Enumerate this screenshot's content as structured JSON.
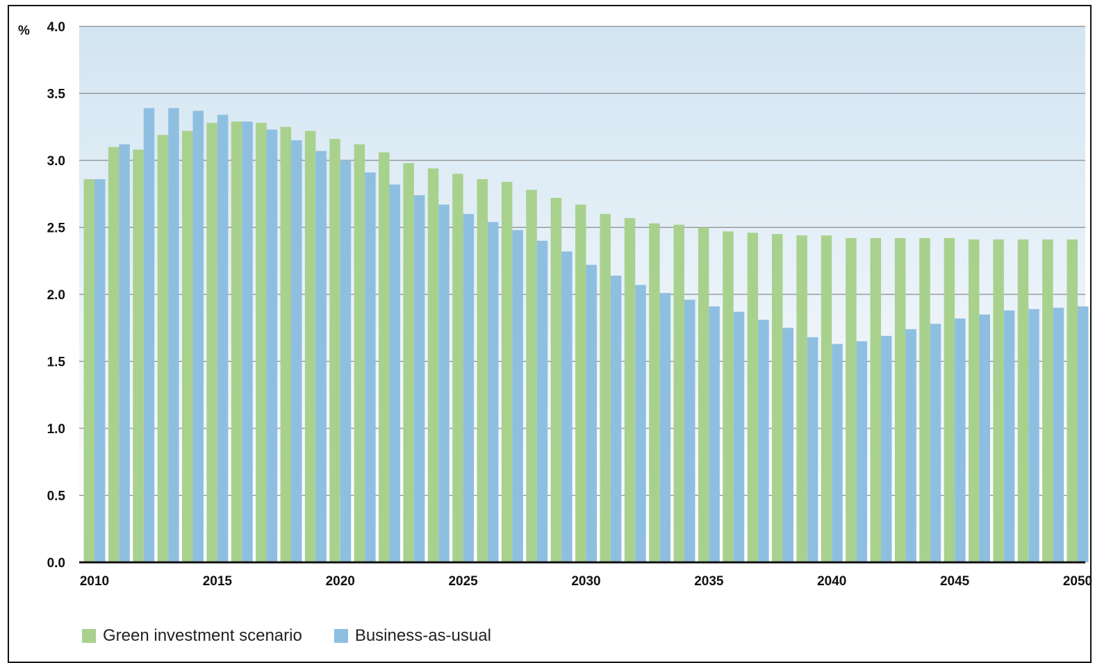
{
  "chart_data": {
    "type": "bar",
    "ylabel": "%",
    "ylim": [
      0,
      4.0
    ],
    "yticks": [
      "0.0",
      "0.5",
      "1.0",
      "1.5",
      "2.0",
      "2.5",
      "3.0",
      "3.5",
      "4.0"
    ],
    "xtick_labels": [
      "2010",
      "2015",
      "2020",
      "2025",
      "2030",
      "2035",
      "2040",
      "2045",
      "2050"
    ],
    "grid": true,
    "legend_position": "bottom-left",
    "categories": [
      2010,
      2011,
      2012,
      2013,
      2014,
      2015,
      2016,
      2017,
      2018,
      2019,
      2020,
      2021,
      2022,
      2023,
      2024,
      2025,
      2026,
      2027,
      2028,
      2029,
      2030,
      2031,
      2032,
      2033,
      2034,
      2035,
      2036,
      2037,
      2038,
      2039,
      2040,
      2041,
      2042,
      2043,
      2044,
      2045,
      2046,
      2047,
      2048,
      2049,
      2050
    ],
    "series": [
      {
        "name": "Green investment scenario",
        "color": "#a9d18e",
        "values": [
          2.86,
          3.1,
          3.08,
          3.19,
          3.22,
          3.28,
          3.29,
          3.28,
          3.25,
          3.22,
          3.16,
          3.12,
          3.06,
          2.98,
          2.94,
          2.9,
          2.86,
          2.84,
          2.78,
          2.72,
          2.67,
          2.6,
          2.57,
          2.53,
          2.52,
          2.5,
          2.47,
          2.46,
          2.45,
          2.44,
          2.44,
          2.42,
          2.42,
          2.42,
          2.42,
          2.42,
          2.41,
          2.41,
          2.41,
          2.41,
          2.41
        ]
      },
      {
        "name": "Business-as-usual",
        "color": "#8fbfe0",
        "values": [
          2.86,
          3.12,
          3.39,
          3.39,
          3.37,
          3.34,
          3.29,
          3.23,
          3.15,
          3.07,
          3.0,
          2.91,
          2.82,
          2.74,
          2.67,
          2.6,
          2.54,
          2.48,
          2.4,
          2.32,
          2.22,
          2.14,
          2.07,
          2.01,
          1.96,
          1.91,
          1.87,
          1.81,
          1.75,
          1.68,
          1.63,
          1.65,
          1.69,
          1.74,
          1.78,
          1.82,
          1.85,
          1.88,
          1.89,
          1.9,
          1.91
        ]
      }
    ]
  }
}
